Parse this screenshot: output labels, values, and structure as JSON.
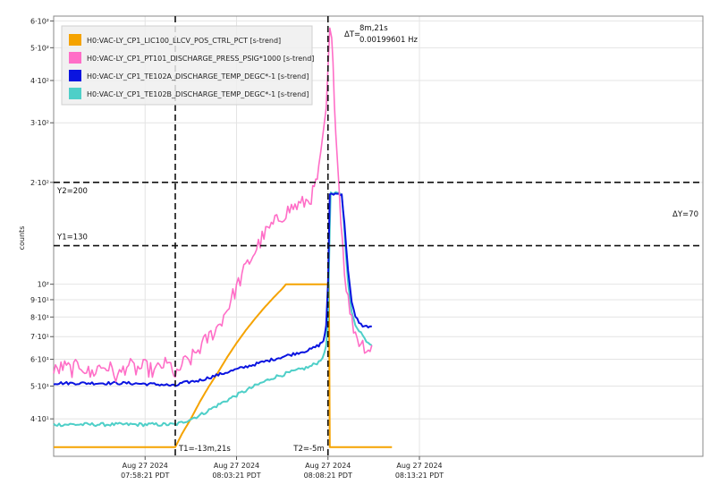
{
  "chart_data": {
    "type": "line",
    "ylabel": "counts",
    "y_scale": "log",
    "ylim": [
      31.0,
      620.0
    ],
    "xlim_minutes": [
      -20,
      15.5
    ],
    "grid": true,
    "legend_position": "top-left",
    "y_ticks": [
      {
        "value": 600,
        "label": "6·10²"
      },
      {
        "value": 500,
        "label": "5·10²"
      },
      {
        "value": 400,
        "label": "4·10²"
      },
      {
        "value": 300,
        "label": "3·10²"
      },
      {
        "value": 200,
        "label": "2·10²"
      },
      {
        "value": 100,
        "label": "10²"
      },
      {
        "value": 90,
        "label": "9·10¹"
      },
      {
        "value": 80,
        "label": "8·10¹"
      },
      {
        "value": 70,
        "label": "7·10¹"
      },
      {
        "value": 60,
        "label": "6·10¹"
      },
      {
        "value": 50,
        "label": "5·10¹"
      },
      {
        "value": 40,
        "label": "4·10¹"
      }
    ],
    "x_ticks": [
      {
        "minutes": -15,
        "line1": "Aug 27 2024",
        "line2": "07:58:21 PDT"
      },
      {
        "minutes": -10,
        "line1": "Aug 27 2024",
        "line2": "08:03:21 PDT"
      },
      {
        "minutes": -5,
        "line1": "Aug 27 2024",
        "line2": "08:08:21 PDT"
      },
      {
        "minutes": 0,
        "line1": "Aug 27 2024",
        "line2": "08:13:21 PDT"
      }
    ],
    "series": [
      {
        "name": "H0:VAC-LY_CP1_LIC100_LLCV_POS_CTRL_PCT [s-trend]",
        "color": "#f5a300",
        "points": [
          [
            -20,
            33
          ],
          [
            -15,
            33
          ],
          [
            -13.35,
            33
          ],
          [
            -13.0,
            36
          ],
          [
            -12.5,
            40
          ],
          [
            -12.0,
            45
          ],
          [
            -11.5,
            50
          ],
          [
            -11.0,
            55
          ],
          [
            -10.5,
            61
          ],
          [
            -10.0,
            67
          ],
          [
            -9.5,
            73
          ],
          [
            -9.0,
            79
          ],
          [
            -8.5,
            85
          ],
          [
            -8.0,
            91
          ],
          [
            -7.5,
            97
          ],
          [
            -7.3,
            100
          ],
          [
            -6.0,
            100
          ],
          [
            -5.0,
            100
          ],
          [
            -4.95,
            100
          ],
          [
            -4.9,
            33
          ],
          [
            -1.5,
            33
          ]
        ]
      },
      {
        "name": "H0:VAC-LY_CP1_PT101_DISCHARGE_PRESS_PSIG*1000 [s-trend]",
        "color": "#ff6ec7",
        "points": [
          [
            -20,
            55
          ],
          [
            -19.5,
            57
          ],
          [
            -19,
            56
          ],
          [
            -18.5,
            58
          ],
          [
            -18,
            54
          ],
          [
            -17.5,
            57
          ],
          [
            -17,
            57
          ],
          [
            -16.5,
            53
          ],
          [
            -16,
            58
          ],
          [
            -15.5,
            56
          ],
          [
            -15,
            57
          ],
          [
            -14.5,
            55
          ],
          [
            -14,
            58
          ],
          [
            -13.5,
            57
          ],
          [
            -13.35,
            52
          ],
          [
            -13,
            58
          ],
          [
            -12.5,
            60
          ],
          [
            -12,
            65
          ],
          [
            -11.5,
            70
          ],
          [
            -11,
            75
          ],
          [
            -10.5,
            85
          ],
          [
            -10,
            98
          ],
          [
            -9.5,
            112
          ],
          [
            -9,
            125
          ],
          [
            -8.5,
            140
          ],
          [
            -8,
            150
          ],
          [
            -7.5,
            160
          ],
          [
            -7,
            168
          ],
          [
            -6.5,
            172
          ],
          [
            -6,
            178
          ],
          [
            -5.75,
            190
          ],
          [
            -5.5,
            215
          ],
          [
            -5.3,
            260
          ],
          [
            -5.1,
            330
          ],
          [
            -5.0,
            420
          ],
          [
            -4.9,
            560
          ],
          [
            -4.8,
            520
          ],
          [
            -4.65,
            360
          ],
          [
            -4.5,
            240
          ],
          [
            -4.3,
            160
          ],
          [
            -4.1,
            110
          ],
          [
            -3.9,
            90
          ],
          [
            -3.7,
            78
          ],
          [
            -3.5,
            72
          ],
          [
            -3.3,
            68
          ],
          [
            -3.0,
            66
          ],
          [
            -2.8,
            64
          ],
          [
            -2.6,
            66
          ]
        ]
      },
      {
        "name": "H0:VAC-LY_CP1_TE102A_DISCHARGE_TEMP_DEGC*-1 [s-trend]",
        "color": "#0a14e0",
        "points": [
          [
            -20,
            51
          ],
          [
            -18,
            51
          ],
          [
            -16,
            51
          ],
          [
            -14,
            50.5
          ],
          [
            -13.35,
            50
          ],
          [
            -13,
            51
          ],
          [
            -12,
            52
          ],
          [
            -11,
            54
          ],
          [
            -10,
            56
          ],
          [
            -9,
            58
          ],
          [
            -8,
            60
          ],
          [
            -7,
            62
          ],
          [
            -6,
            64
          ],
          [
            -5.5,
            66
          ],
          [
            -5.25,
            68
          ],
          [
            -5.1,
            75
          ],
          [
            -5.0,
            100
          ],
          [
            -4.9,
            185
          ],
          [
            -4.5,
            185
          ],
          [
            -4.25,
            185
          ],
          [
            -4.1,
            150
          ],
          [
            -3.9,
            110
          ],
          [
            -3.7,
            88
          ],
          [
            -3.5,
            80
          ],
          [
            -3.2,
            76
          ],
          [
            -3.0,
            75
          ],
          [
            -2.6,
            75
          ]
        ]
      },
      {
        "name": "H0:VAC-LY_CP1_TE102B_DISCHARGE_TEMP_DEGC*-1 [s-trend]",
        "color": "#4ecfc8",
        "points": [
          [
            -20,
            38.5
          ],
          [
            -18,
            38.5
          ],
          [
            -16,
            38.5
          ],
          [
            -14,
            38.5
          ],
          [
            -13.35,
            38.5
          ],
          [
            -13,
            39
          ],
          [
            -12,
            41
          ],
          [
            -11,
            44
          ],
          [
            -10,
            47
          ],
          [
            -9,
            50
          ],
          [
            -8,
            53
          ],
          [
            -7,
            55
          ],
          [
            -6,
            57
          ],
          [
            -5.5,
            59
          ],
          [
            -5.2,
            62
          ],
          [
            -5.1,
            66
          ],
          [
            -5.0,
            80
          ],
          [
            -4.9,
            150
          ],
          [
            -4.85,
            185
          ],
          [
            -4.3,
            185
          ],
          [
            -4.25,
            185
          ],
          [
            -4.1,
            145
          ],
          [
            -3.9,
            100
          ],
          [
            -3.7,
            82
          ],
          [
            -3.5,
            76
          ],
          [
            -3.2,
            72
          ],
          [
            -3.0,
            69
          ],
          [
            -2.6,
            66
          ]
        ]
      }
    ],
    "cursors": {
      "t1_minutes": -13.35,
      "t2_minutes": -5.0,
      "y1": 130,
      "y2": 200,
      "labels": {
        "t1": "T1=-13m,21s",
        "t2": "T2=-5m",
        "y1": "Y1=130",
        "y2": "Y2=200",
        "dy": "ΔY=70",
        "dt_prefix": "ΔT=",
        "dt_value": "8m,21s",
        "freq": "0.00199601 Hz"
      }
    }
  }
}
